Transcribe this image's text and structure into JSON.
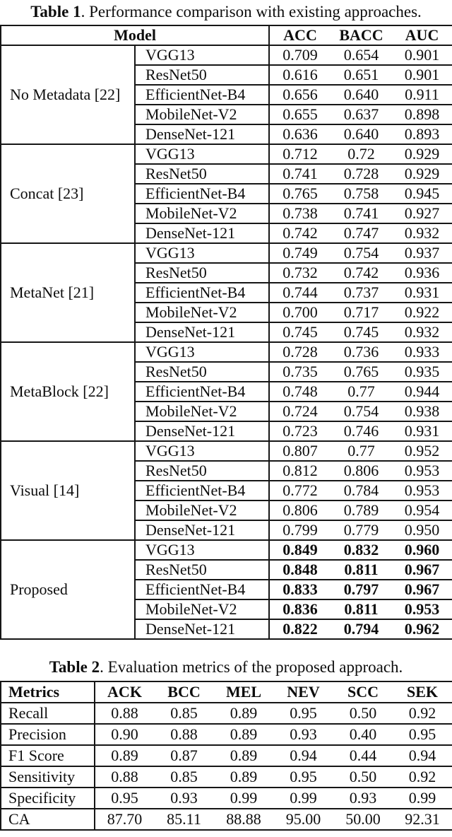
{
  "colors": {
    "background": "#ffffff",
    "text": "#0d0d0d",
    "border": "#161616"
  },
  "table1": {
    "caption": {
      "label": "Table 1",
      "text": ". Performance comparison with existing approaches."
    },
    "header": {
      "model": "Model",
      "metrics": [
        "ACC",
        "BACC",
        "AUC"
      ]
    },
    "groups": [
      {
        "name": "No Metadata [22]",
        "bold_values": false,
        "rows": [
          {
            "network": "VGG13",
            "values": [
              "0.709",
              "0.654",
              "0.901"
            ]
          },
          {
            "network": "ResNet50",
            "values": [
              "0.616",
              "0.651",
              "0.901"
            ]
          },
          {
            "network": "EfficientNet-B4",
            "values": [
              "0.656",
              "0.640",
              "0.911"
            ]
          },
          {
            "network": "MobileNet-V2",
            "values": [
              "0.655",
              "0.637",
              "0.898"
            ]
          },
          {
            "network": "DenseNet-121",
            "values": [
              "0.636",
              "0.640",
              "0.893"
            ]
          }
        ]
      },
      {
        "name": "Concat [23]",
        "bold_values": false,
        "rows": [
          {
            "network": "VGG13",
            "values": [
              "0.712",
              "0.72",
              "0.929"
            ]
          },
          {
            "network": "ResNet50",
            "values": [
              "0.741",
              "0.728",
              "0.929"
            ]
          },
          {
            "network": "EfficientNet-B4",
            "values": [
              "0.765",
              "0.758",
              "0.945"
            ]
          },
          {
            "network": "MobileNet-V2",
            "values": [
              "0.738",
              "0.741",
              "0.927"
            ]
          },
          {
            "network": "DenseNet-121",
            "values": [
              "0.742",
              "0.747",
              "0.932"
            ]
          }
        ]
      },
      {
        "name": "MetaNet [21]",
        "bold_values": false,
        "rows": [
          {
            "network": "VGG13",
            "values": [
              "0.749",
              "0.754",
              "0.937"
            ]
          },
          {
            "network": "ResNet50",
            "values": [
              "0.732",
              "0.742",
              "0.936"
            ]
          },
          {
            "network": "EfficientNet-B4",
            "values": [
              "0.744",
              "0.737",
              "0.931"
            ]
          },
          {
            "network": "MobileNet-V2",
            "values": [
              "0.700",
              "0.717",
              "0.922"
            ]
          },
          {
            "network": "DenseNet-121",
            "values": [
              "0.745",
              "0.745",
              "0.932"
            ]
          }
        ]
      },
      {
        "name": "MetaBlock [22]",
        "bold_values": false,
        "rows": [
          {
            "network": "VGG13",
            "values": [
              "0.728",
              "0.736",
              "0.933"
            ]
          },
          {
            "network": "ResNet50",
            "values": [
              "0.735",
              "0.765",
              "0.935"
            ]
          },
          {
            "network": "EfficientNet-B4",
            "values": [
              "0.748",
              "0.77",
              "0.944"
            ]
          },
          {
            "network": "MobileNet-V2",
            "values": [
              "0.724",
              "0.754",
              "0.938"
            ]
          },
          {
            "network": "DenseNet-121",
            "values": [
              "0.723",
              "0.746",
              "0.931"
            ]
          }
        ]
      },
      {
        "name": "Visual [14]",
        "bold_values": false,
        "rows": [
          {
            "network": "VGG13",
            "values": [
              "0.807",
              "0.77",
              "0.952"
            ]
          },
          {
            "network": "ResNet50",
            "values": [
              "0.812",
              "0.806",
              "0.953"
            ]
          },
          {
            "network": "EfficientNet-B4",
            "values": [
              "0.772",
              "0.784",
              "0.953"
            ]
          },
          {
            "network": "MobileNet-V2",
            "values": [
              "0.806",
              "0.789",
              "0.954"
            ]
          },
          {
            "network": "DenseNet-121",
            "values": [
              "0.799",
              "0.779",
              "0.950"
            ]
          }
        ]
      },
      {
        "name": "Proposed",
        "bold_values": true,
        "rows": [
          {
            "network": "VGG13",
            "values": [
              "0.849",
              "0.832",
              "0.960"
            ]
          },
          {
            "network": "ResNet50",
            "values": [
              "0.848",
              "0.811",
              "0.967"
            ]
          },
          {
            "network": "EfficientNet-B4",
            "values": [
              "0.833",
              "0.797",
              "0.967"
            ]
          },
          {
            "network": "MobileNet-V2",
            "values": [
              "0.836",
              "0.811",
              "0.953"
            ]
          },
          {
            "network": "DenseNet-121",
            "values": [
              "0.822",
              "0.794",
              "0.962"
            ]
          }
        ]
      }
    ]
  },
  "table2": {
    "caption": {
      "label": "Table 2",
      "text": ". Evaluation metrics of the proposed approach."
    },
    "columns": [
      "Metrics",
      "ACK",
      "BCC",
      "MEL",
      "NEV",
      "SCC",
      "SEK"
    ],
    "rows": [
      {
        "metric": "Recall",
        "values": [
          "0.88",
          "0.85",
          "0.89",
          "0.95",
          "0.50",
          "0.92"
        ]
      },
      {
        "metric": "Precision",
        "values": [
          "0.90",
          "0.88",
          "0.89",
          "0.93",
          "0.40",
          "0.95"
        ]
      },
      {
        "metric": "F1 Score",
        "values": [
          "0.89",
          "0.87",
          "0.89",
          "0.94",
          "0.44",
          "0.94"
        ]
      },
      {
        "metric": "Sensitivity",
        "values": [
          "0.88",
          "0.85",
          "0.89",
          "0.95",
          "0.50",
          "0.92"
        ]
      },
      {
        "metric": "Specificity",
        "values": [
          "0.95",
          "0.93",
          "0.99",
          "0.99",
          "0.93",
          "0.99"
        ]
      },
      {
        "metric": "CA",
        "values": [
          "87.70",
          "85.11",
          "88.88",
          "95.00",
          "50.00",
          "92.31"
        ]
      }
    ]
  }
}
